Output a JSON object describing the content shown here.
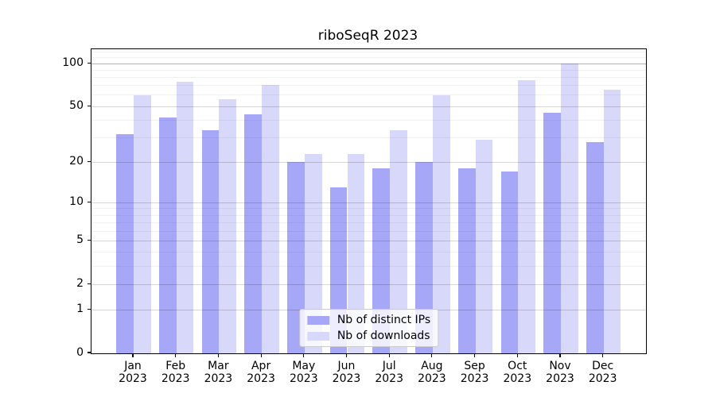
{
  "title": "riboSeqR 2023",
  "chart_data": {
    "type": "bar",
    "title": "riboSeqR 2023",
    "year": "2023",
    "months": [
      "Jan",
      "Feb",
      "Mar",
      "Apr",
      "May",
      "Jun",
      "Jul",
      "Aug",
      "Sep",
      "Oct",
      "Nov",
      "Dec"
    ],
    "series": [
      {
        "name": "Nb of distinct IPs",
        "color": "#a7a7f7",
        "values": [
          32,
          42,
          34,
          44,
          20,
          13,
          18,
          20,
          18,
          17,
          45,
          28
        ]
      },
      {
        "name": "Nb of downloads",
        "color": "#d8d8fa",
        "values": [
          60,
          75,
          56,
          71,
          23,
          23,
          34,
          60,
          29,
          77,
          100,
          66
        ]
      }
    ],
    "xlabel": "",
    "ylabel": "",
    "yscale": "log1p",
    "ylim": [
      0,
      126
    ],
    "yticks": [
      0,
      1,
      2,
      5,
      10,
      20,
      50,
      100
    ],
    "minor_yticks": [
      3,
      4,
      6,
      7,
      8,
      9,
      30,
      40,
      60,
      70,
      80,
      90,
      110,
      120
    ],
    "grid": true,
    "legend_position": "lower center"
  }
}
